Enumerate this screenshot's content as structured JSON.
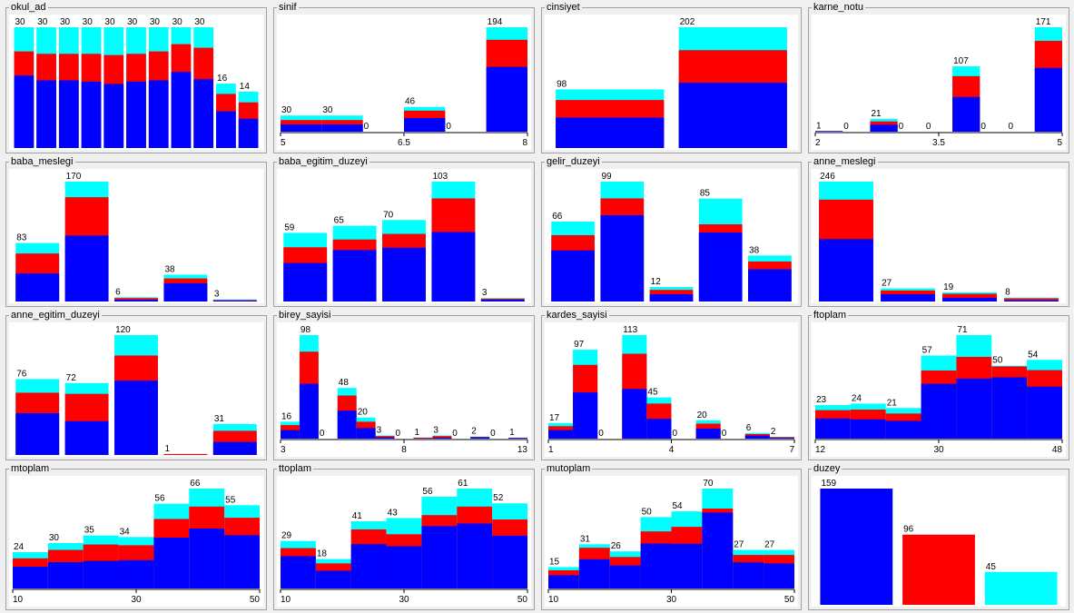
{
  "colors": {
    "low": "#0000ff",
    "mid": "#ff0000",
    "high": "#00ffff"
  },
  "chart_data": [
    {
      "name": "okul_ad",
      "type": "bar",
      "values": [
        30,
        30,
        30,
        30,
        30,
        30,
        30,
        30,
        30,
        16,
        14
      ],
      "fractions": [
        0.6,
        0.56,
        0.56,
        0.55,
        0.53,
        0.55,
        0.56,
        0.63,
        0.57,
        0.57,
        0.52
      ],
      "fractions_mid": [
        0.8,
        0.78,
        0.78,
        0.78,
        0.77,
        0.78,
        0.8,
        0.86,
        0.83,
        0.84,
        0.81
      ]
    },
    {
      "name": "sinif",
      "type": "histogram",
      "axis": {
        "ticks": [
          "5",
          "6.5",
          "8"
        ]
      },
      "values": [
        30,
        30,
        0,
        46,
        0,
        194
      ],
      "fractions": [
        0.45,
        0.45,
        0,
        0.55,
        0,
        0.62
      ],
      "fractions_mid": [
        0.72,
        0.72,
        0,
        0.85,
        0,
        0.88
      ]
    },
    {
      "name": "cinsiyet",
      "type": "bar",
      "values": [
        98,
        202
      ],
      "fractions": [
        0.52,
        0.54
      ],
      "fractions_mid": [
        0.82,
        0.81
      ]
    },
    {
      "name": "karne_notu",
      "type": "histogram",
      "axis": {
        "ticks": [
          "2",
          "3.5",
          "5"
        ]
      },
      "values": [
        1,
        0,
        21,
        0,
        0,
        107,
        0,
        0,
        171
      ],
      "fractions": [
        1,
        0,
        0.55,
        0,
        0,
        0.53,
        0,
        0,
        0.61
      ],
      "fractions_mid": [
        1,
        0,
        0.8,
        0,
        0,
        0.85,
        0,
        0,
        0.87
      ]
    },
    {
      "name": "baba_meslegi",
      "type": "bar",
      "values": [
        83,
        170,
        6,
        38,
        3
      ],
      "fractions": [
        0.48,
        0.55,
        0.4,
        0.68,
        0.4
      ],
      "fractions_mid": [
        0.82,
        0.87,
        0.8,
        0.86,
        0.7
      ]
    },
    {
      "name": "baba_egitim_duzeyi",
      "type": "bar",
      "values": [
        59,
        65,
        70,
        103,
        3
      ],
      "fractions": [
        0.56,
        0.68,
        0.66,
        0.58,
        0.5
      ],
      "fractions_mid": [
        0.79,
        0.82,
        0.83,
        0.86,
        0.8
      ]
    },
    {
      "name": "gelir_duzeyi",
      "type": "bar",
      "values": [
        66,
        99,
        12,
        85,
        38
      ],
      "fractions": [
        0.64,
        0.72,
        0.5,
        0.67,
        0.7
      ],
      "fractions_mid": [
        0.83,
        0.86,
        0.8,
        0.75,
        0.87
      ]
    },
    {
      "name": "anne_meslegi",
      "type": "bar",
      "values": [
        246,
        27,
        19,
        8
      ],
      "fractions": [
        0.52,
        0.55,
        0.4,
        0.3
      ],
      "fractions_mid": [
        0.85,
        0.84,
        0.83,
        0.8
      ]
    },
    {
      "name": "anne_egitim_duzeyi",
      "type": "bar",
      "values": [
        76,
        72,
        120,
        1,
        31
      ],
      "fractions": [
        0.55,
        0.47,
        0.62,
        0,
        0.42
      ],
      "fractions_mid": [
        0.82,
        0.85,
        0.83,
        1,
        0.78
      ]
    },
    {
      "name": "birey_sayisi",
      "type": "histogram",
      "axis": {
        "ticks": [
          "3",
          "8",
          "13"
        ]
      },
      "values": [
        16,
        98,
        0,
        48,
        20,
        3,
        0,
        1,
        3,
        0,
        2,
        0,
        1
      ],
      "fractions": [
        0.5,
        0.53,
        0,
        0.55,
        0.5,
        0.4,
        0,
        0.3,
        0.3,
        0,
        0.6,
        0,
        0.6
      ],
      "fractions_mid": [
        0.8,
        0.84,
        0,
        0.85,
        0.8,
        0.8,
        0,
        0.9,
        0.8,
        0,
        0.8,
        0,
        0.8
      ]
    },
    {
      "name": "kardes_sayisi",
      "type": "histogram",
      "axis": {
        "ticks": [
          "1",
          "4",
          "7"
        ]
      },
      "values": [
        17,
        97,
        0,
        113,
        45,
        0,
        20,
        0,
        6,
        2
      ],
      "fractions": [
        0.55,
        0.52,
        0,
        0.48,
        0.48,
        0,
        0.55,
        0,
        0.55,
        0.4
      ],
      "fractions_mid": [
        0.8,
        0.83,
        0,
        0.82,
        0.85,
        0,
        0.82,
        0,
        0.82,
        0.8
      ]
    },
    {
      "name": "ftoplam",
      "type": "histogram",
      "axis": {
        "ticks": [
          "12",
          "30",
          "48"
        ]
      },
      "values": [
        23,
        24,
        21,
        57,
        71,
        50,
        54
      ],
      "fractions": [
        0.6,
        0.55,
        0.58,
        0.66,
        0.58,
        0.84,
        0.66
      ],
      "fractions_mid": [
        0.85,
        0.83,
        0.82,
        0.82,
        0.79,
        0.99,
        0.87
      ]
    },
    {
      "name": "mtoplam",
      "type": "histogram",
      "axis": {
        "ticks": [
          "10",
          "30",
          "50"
        ]
      },
      "values": [
        24,
        30,
        35,
        34,
        56,
        66,
        55
      ],
      "fractions": [
        0.6,
        0.58,
        0.52,
        0.55,
        0.6,
        0.6,
        0.64
      ],
      "fractions_mid": [
        0.83,
        0.85,
        0.83,
        0.84,
        0.82,
        0.82,
        0.85
      ]
    },
    {
      "name": "ttoplam",
      "type": "histogram",
      "axis": {
        "ticks": [
          "10",
          "30",
          "50"
        ]
      },
      "values": [
        29,
        18,
        41,
        43,
        56,
        61,
        52
      ],
      "fractions": [
        0.68,
        0.6,
        0.66,
        0.6,
        0.68,
        0.65,
        0.62
      ],
      "fractions_mid": [
        0.85,
        0.85,
        0.88,
        0.77,
        0.8,
        0.82,
        0.81
      ]
    },
    {
      "name": "mutoplam",
      "type": "histogram",
      "axis": {
        "ticks": [
          "10",
          "30",
          "50"
        ]
      },
      "values": [
        15,
        31,
        26,
        50,
        54,
        70,
        27,
        27
      ],
      "fractions": [
        0.62,
        0.66,
        0.62,
        0.63,
        0.58,
        0.76,
        0.68,
        0.65
      ],
      "fractions_mid": [
        0.85,
        0.92,
        0.85,
        0.8,
        0.8,
        0.8,
        0.87,
        0.87
      ]
    },
    {
      "name": "duzey",
      "type": "bar",
      "values": [
        159,
        96,
        45
      ],
      "colors": [
        "#0000ff",
        "#ff0000",
        "#00ffff"
      ]
    }
  ]
}
